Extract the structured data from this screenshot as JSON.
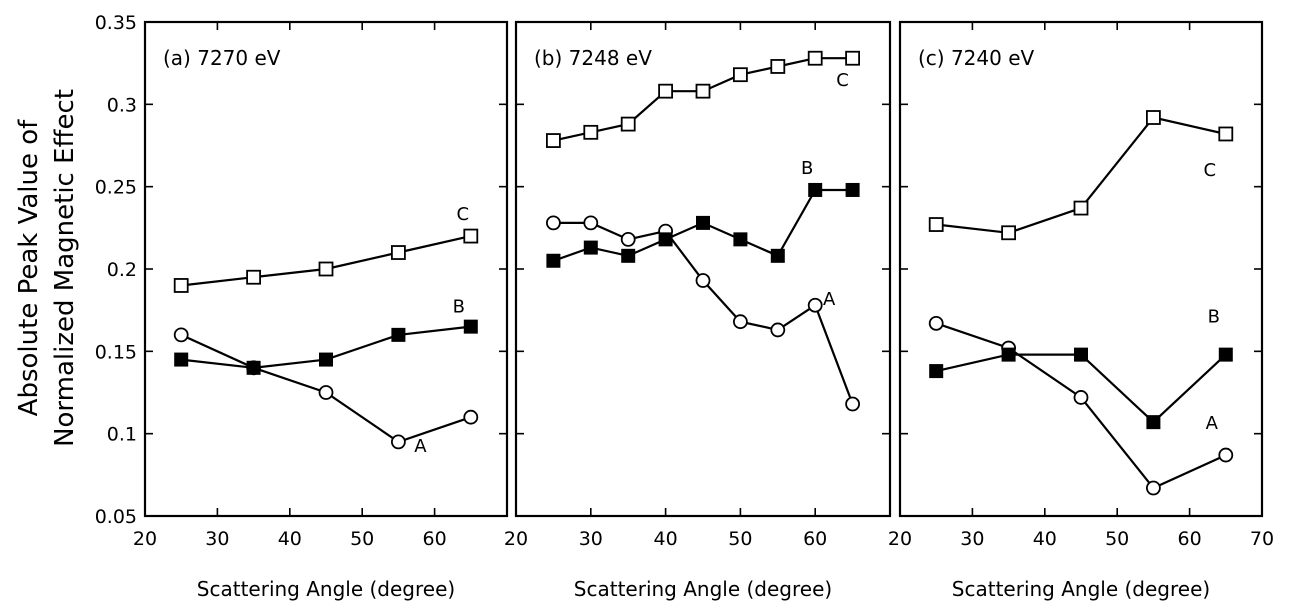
{
  "ylabel_lines": [
    "Absolute Peak Value of",
    "Normalized Magnetic Effect"
  ],
  "chart_data": [
    {
      "type": "line",
      "title": "(a) 7270 eV",
      "xlabel": "Scattering Angle (degree)",
      "ylabel": "Absolute Peak Value of Normalized Magnetic Effect",
      "xlim": [
        20,
        70
      ],
      "ylim": [
        0.05,
        0.35
      ],
      "xticks": [
        20,
        30,
        40,
        50,
        60
      ],
      "yticks": [
        0.05,
        0.1,
        0.15,
        0.2,
        0.25,
        0.3,
        0.35
      ],
      "ytick_labels": [
        "0.05",
        "0.1",
        "0.15",
        "0.2",
        "0.25",
        "0.3",
        "0.35"
      ],
      "grid": false,
      "series": [
        {
          "name": "A",
          "marker": "open-circle",
          "x": [
            25,
            35,
            45,
            55,
            65
          ],
          "y": [
            0.16,
            0.14,
            0.125,
            0.095,
            0.11
          ]
        },
        {
          "name": "B",
          "marker": "filled-square",
          "x": [
            25,
            35,
            45,
            55,
            65
          ],
          "y": [
            0.145,
            0.14,
            0.145,
            0.16,
            0.165
          ]
        },
        {
          "name": "C",
          "marker": "open-square",
          "x": [
            25,
            35,
            45,
            55,
            65
          ],
          "y": [
            0.19,
            0.195,
            0.2,
            0.21,
            0.22
          ]
        }
      ]
    },
    {
      "type": "line",
      "title": "(b) 7248 eV",
      "xlabel": "Scattering Angle (degree)",
      "xlim": [
        20,
        70
      ],
      "ylim": [
        0.05,
        0.35
      ],
      "xticks": [
        20,
        30,
        40,
        50,
        60
      ],
      "grid": false,
      "series": [
        {
          "name": "A",
          "marker": "open-circle",
          "x": [
            25,
            30,
            35,
            40,
            45,
            50,
            55,
            60,
            65
          ],
          "y": [
            0.228,
            0.228,
            0.218,
            0.223,
            0.193,
            0.168,
            0.163,
            0.178,
            0.118
          ]
        },
        {
          "name": "B",
          "marker": "filled-square",
          "x": [
            25,
            30,
            35,
            40,
            45,
            50,
            55,
            60,
            65
          ],
          "y": [
            0.205,
            0.213,
            0.208,
            0.218,
            0.228,
            0.218,
            0.208,
            0.248,
            0.248
          ]
        },
        {
          "name": "C",
          "marker": "open-square",
          "x": [
            25,
            30,
            35,
            40,
            45,
            50,
            55,
            60,
            65
          ],
          "y": [
            0.278,
            0.283,
            0.288,
            0.308,
            0.308,
            0.318,
            0.323,
            0.328,
            0.328
          ]
        }
      ]
    },
    {
      "type": "line",
      "title": "(c) 7240 eV",
      "xlabel": "Scattering Angle (degree)",
      "xlim": [
        20,
        70
      ],
      "ylim": [
        0.05,
        0.35
      ],
      "xticks": [
        20,
        30,
        40,
        50,
        60,
        70
      ],
      "grid": false,
      "series": [
        {
          "name": "A",
          "marker": "open-circle",
          "x": [
            25,
            35,
            45,
            55,
            65
          ],
          "y": [
            0.167,
            0.152,
            0.122,
            0.067,
            0.087
          ]
        },
        {
          "name": "B",
          "marker": "filled-square",
          "x": [
            25,
            35,
            45,
            55,
            65
          ],
          "y": [
            0.138,
            0.148,
            0.148,
            0.107,
            0.148
          ]
        },
        {
          "name": "C",
          "marker": "open-square",
          "x": [
            25,
            35,
            45,
            55,
            65
          ],
          "y": [
            0.227,
            0.222,
            0.237,
            0.292,
            0.282
          ]
        }
      ]
    }
  ]
}
